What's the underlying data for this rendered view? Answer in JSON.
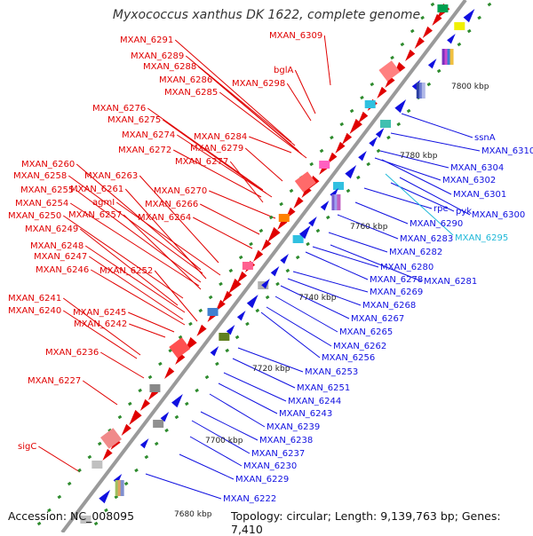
{
  "title": "Myxococcus xanthus DK 1622, complete genome",
  "accession_text": "Accession: NC_008095",
  "summary_text": "Topology: circular; Length: 9,139,763 bp; Genes: 7,410",
  "colors": {
    "forward": "#e00000",
    "reverse": "#1010e0",
    "highlight": "#20b8d8",
    "backbone": "#9a9a9a",
    "tick": "#2e8b2e"
  },
  "scale_labels": [
    "7680 kbp",
    "7700 kbp",
    "7720 kbp",
    "7740 kbp",
    "7760 kbp",
    "7780 kbp",
    "7800 kbp"
  ],
  "forward_labels": [
    "MXAN_6309",
    "MXAN_6291",
    "MXAN_6289",
    "MXAN_6288",
    "MXAN_6286",
    "MXAN_6285",
    "bglA",
    "MXAN_6298",
    "MXAN_6276",
    "MXAN_6275",
    "MXAN_6274",
    "MXAN_6284",
    "MXAN_6272",
    "MXAN_6279",
    "MXAN_6277",
    "MXAN_6260",
    "MXAN_6258",
    "MXAN_6263",
    "MXAN_6255",
    "MXAN_6261",
    "MXAN_6254",
    "agmI",
    "MXAN_6270",
    "MXAN_6266",
    "MXAN_6250",
    "MXAN_6257",
    "MXAN_6264",
    "MXAN_6249",
    "MXAN_6248",
    "MXAN_6247",
    "MXAN_6246",
    "MXAN_6252",
    "MXAN_6241",
    "MXAN_6240",
    "MXAN_6245",
    "MXAN_6242",
    "MXAN_6236",
    "MXAN_6227",
    "sigC"
  ],
  "reverse_labels": [
    "ssnA",
    "MXAN_6310",
    "MXAN_6304",
    "MXAN_6302",
    "MXAN_6301",
    "rpe",
    "pyk",
    "MXAN_6300",
    "MXAN_6290",
    "MXAN_6283",
    "MXAN_6282",
    "MXAN_6280",
    "MXAN_6278",
    "MXAN_6281",
    "MXAN_6269",
    "MXAN_6268",
    "MXAN_6267",
    "MXAN_6265",
    "MXAN_6262",
    "MXAN_6256",
    "MXAN_6253",
    "MXAN_6251",
    "MXAN_6244",
    "MXAN_6243",
    "MXAN_6239",
    "MXAN_6238",
    "MXAN_6237",
    "MXAN_6230",
    "MXAN_6229",
    "MXAN_6222"
  ],
  "highlight_labels": [
    "MXAN_6295"
  ]
}
